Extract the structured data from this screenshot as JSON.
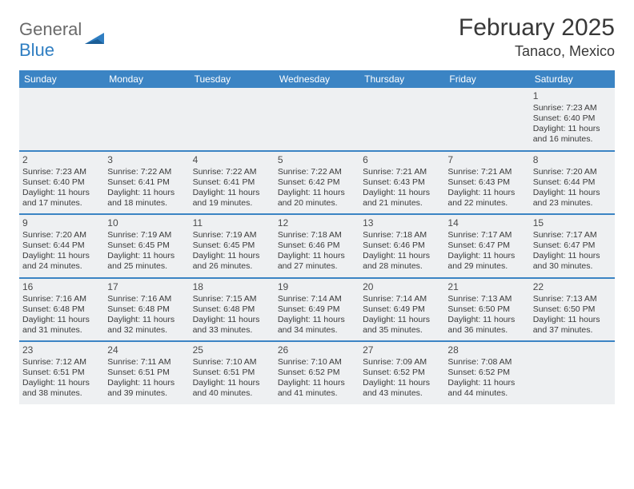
{
  "logo": {
    "word1": "General",
    "word2": "Blue"
  },
  "title": "February 2025",
  "location": "Tanaco, Mexico",
  "colors": {
    "header_bar": "#3b84c4",
    "week_divider": "#3b84c4",
    "cell_bg": "#eef0f2",
    "text": "#3a3a3a",
    "title_text": "#383838",
    "logo_gray": "#6a6a6a",
    "logo_blue": "#2f7ec2"
  },
  "weekdays": [
    "Sunday",
    "Monday",
    "Tuesday",
    "Wednesday",
    "Thursday",
    "Friday",
    "Saturday"
  ],
  "weeks": [
    [
      null,
      null,
      null,
      null,
      null,
      null,
      {
        "n": "1",
        "sr": "Sunrise: 7:23 AM",
        "ss": "Sunset: 6:40 PM",
        "dl": "Daylight: 11 hours and 16 minutes."
      }
    ],
    [
      {
        "n": "2",
        "sr": "Sunrise: 7:23 AM",
        "ss": "Sunset: 6:40 PM",
        "dl": "Daylight: 11 hours and 17 minutes."
      },
      {
        "n": "3",
        "sr": "Sunrise: 7:22 AM",
        "ss": "Sunset: 6:41 PM",
        "dl": "Daylight: 11 hours and 18 minutes."
      },
      {
        "n": "4",
        "sr": "Sunrise: 7:22 AM",
        "ss": "Sunset: 6:41 PM",
        "dl": "Daylight: 11 hours and 19 minutes."
      },
      {
        "n": "5",
        "sr": "Sunrise: 7:22 AM",
        "ss": "Sunset: 6:42 PM",
        "dl": "Daylight: 11 hours and 20 minutes."
      },
      {
        "n": "6",
        "sr": "Sunrise: 7:21 AM",
        "ss": "Sunset: 6:43 PM",
        "dl": "Daylight: 11 hours and 21 minutes."
      },
      {
        "n": "7",
        "sr": "Sunrise: 7:21 AM",
        "ss": "Sunset: 6:43 PM",
        "dl": "Daylight: 11 hours and 22 minutes."
      },
      {
        "n": "8",
        "sr": "Sunrise: 7:20 AM",
        "ss": "Sunset: 6:44 PM",
        "dl": "Daylight: 11 hours and 23 minutes."
      }
    ],
    [
      {
        "n": "9",
        "sr": "Sunrise: 7:20 AM",
        "ss": "Sunset: 6:44 PM",
        "dl": "Daylight: 11 hours and 24 minutes."
      },
      {
        "n": "10",
        "sr": "Sunrise: 7:19 AM",
        "ss": "Sunset: 6:45 PM",
        "dl": "Daylight: 11 hours and 25 minutes."
      },
      {
        "n": "11",
        "sr": "Sunrise: 7:19 AM",
        "ss": "Sunset: 6:45 PM",
        "dl": "Daylight: 11 hours and 26 minutes."
      },
      {
        "n": "12",
        "sr": "Sunrise: 7:18 AM",
        "ss": "Sunset: 6:46 PM",
        "dl": "Daylight: 11 hours and 27 minutes."
      },
      {
        "n": "13",
        "sr": "Sunrise: 7:18 AM",
        "ss": "Sunset: 6:46 PM",
        "dl": "Daylight: 11 hours and 28 minutes."
      },
      {
        "n": "14",
        "sr": "Sunrise: 7:17 AM",
        "ss": "Sunset: 6:47 PM",
        "dl": "Daylight: 11 hours and 29 minutes."
      },
      {
        "n": "15",
        "sr": "Sunrise: 7:17 AM",
        "ss": "Sunset: 6:47 PM",
        "dl": "Daylight: 11 hours and 30 minutes."
      }
    ],
    [
      {
        "n": "16",
        "sr": "Sunrise: 7:16 AM",
        "ss": "Sunset: 6:48 PM",
        "dl": "Daylight: 11 hours and 31 minutes."
      },
      {
        "n": "17",
        "sr": "Sunrise: 7:16 AM",
        "ss": "Sunset: 6:48 PM",
        "dl": "Daylight: 11 hours and 32 minutes."
      },
      {
        "n": "18",
        "sr": "Sunrise: 7:15 AM",
        "ss": "Sunset: 6:48 PM",
        "dl": "Daylight: 11 hours and 33 minutes."
      },
      {
        "n": "19",
        "sr": "Sunrise: 7:14 AM",
        "ss": "Sunset: 6:49 PM",
        "dl": "Daylight: 11 hours and 34 minutes."
      },
      {
        "n": "20",
        "sr": "Sunrise: 7:14 AM",
        "ss": "Sunset: 6:49 PM",
        "dl": "Daylight: 11 hours and 35 minutes."
      },
      {
        "n": "21",
        "sr": "Sunrise: 7:13 AM",
        "ss": "Sunset: 6:50 PM",
        "dl": "Daylight: 11 hours and 36 minutes."
      },
      {
        "n": "22",
        "sr": "Sunrise: 7:13 AM",
        "ss": "Sunset: 6:50 PM",
        "dl": "Daylight: 11 hours and 37 minutes."
      }
    ],
    [
      {
        "n": "23",
        "sr": "Sunrise: 7:12 AM",
        "ss": "Sunset: 6:51 PM",
        "dl": "Daylight: 11 hours and 38 minutes."
      },
      {
        "n": "24",
        "sr": "Sunrise: 7:11 AM",
        "ss": "Sunset: 6:51 PM",
        "dl": "Daylight: 11 hours and 39 minutes."
      },
      {
        "n": "25",
        "sr": "Sunrise: 7:10 AM",
        "ss": "Sunset: 6:51 PM",
        "dl": "Daylight: 11 hours and 40 minutes."
      },
      {
        "n": "26",
        "sr": "Sunrise: 7:10 AM",
        "ss": "Sunset: 6:52 PM",
        "dl": "Daylight: 11 hours and 41 minutes."
      },
      {
        "n": "27",
        "sr": "Sunrise: 7:09 AM",
        "ss": "Sunset: 6:52 PM",
        "dl": "Daylight: 11 hours and 43 minutes."
      },
      {
        "n": "28",
        "sr": "Sunrise: 7:08 AM",
        "ss": "Sunset: 6:52 PM",
        "dl": "Daylight: 11 hours and 44 minutes."
      },
      null
    ]
  ]
}
